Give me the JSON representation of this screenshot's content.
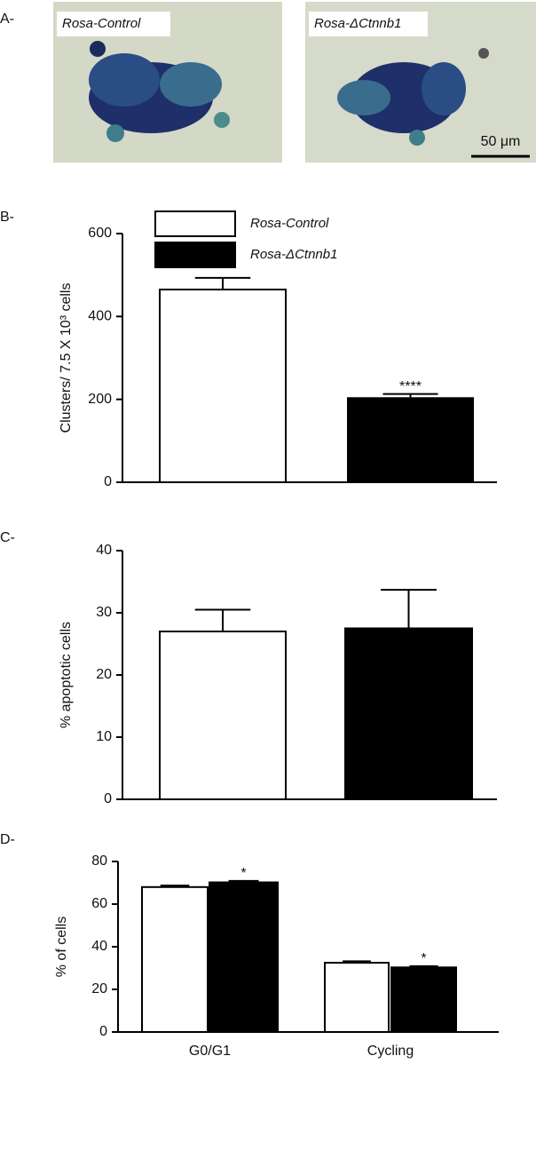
{
  "panel_labels": [
    "A-",
    "B-",
    "C-",
    "D-"
  ],
  "images": [
    {
      "label": "Rosa-Control"
    },
    {
      "label": "Rosa-ΔCtnnb1"
    }
  ],
  "scale_bar": "50 μm",
  "chart_data": [
    {
      "type": "bar",
      "ylabel": "Clusters/ 7.5 X 10³ cells",
      "categories": [
        null
      ],
      "series": [
        {
          "name": "Rosa-Control",
          "color": "#ffffff",
          "values": [
            465
          ],
          "error": [
            28
          ]
        },
        {
          "name": "Rosa-ΔCtnnb1",
          "color": "#000000",
          "values": [
            203
          ],
          "error": [
            10
          ]
        }
      ],
      "ylim": [
        0,
        600
      ],
      "yticks": [
        0,
        200,
        400,
        600
      ],
      "annotations": [
        "****"
      ],
      "legend": "top-left"
    },
    {
      "type": "bar",
      "ylabel": "% apoptotic cells",
      "categories": [
        null
      ],
      "series": [
        {
          "color": "#ffffff",
          "values": [
            27
          ],
          "error": [
            3.5
          ]
        },
        {
          "color": "#000000",
          "values": [
            27.5
          ],
          "error": [
            6.2
          ]
        }
      ],
      "ylim": [
        0,
        40
      ],
      "yticks": [
        0,
        10,
        20,
        30,
        40
      ]
    },
    {
      "type": "bar",
      "ylabel": "% of cells",
      "categories": [
        "G0/G1",
        "Cycling"
      ],
      "series": [
        {
          "color": "#ffffff",
          "values": [
            68,
            32.5
          ],
          "error": [
            0.7,
            0.7
          ]
        },
        {
          "color": "#000000",
          "values": [
            70.2,
            30.3
          ],
          "error": [
            0.7,
            0.6
          ]
        }
      ],
      "ylim": [
        0,
        80
      ],
      "yticks": [
        0,
        20,
        40,
        60,
        80
      ],
      "annotations": [
        "*",
        "*"
      ]
    }
  ]
}
